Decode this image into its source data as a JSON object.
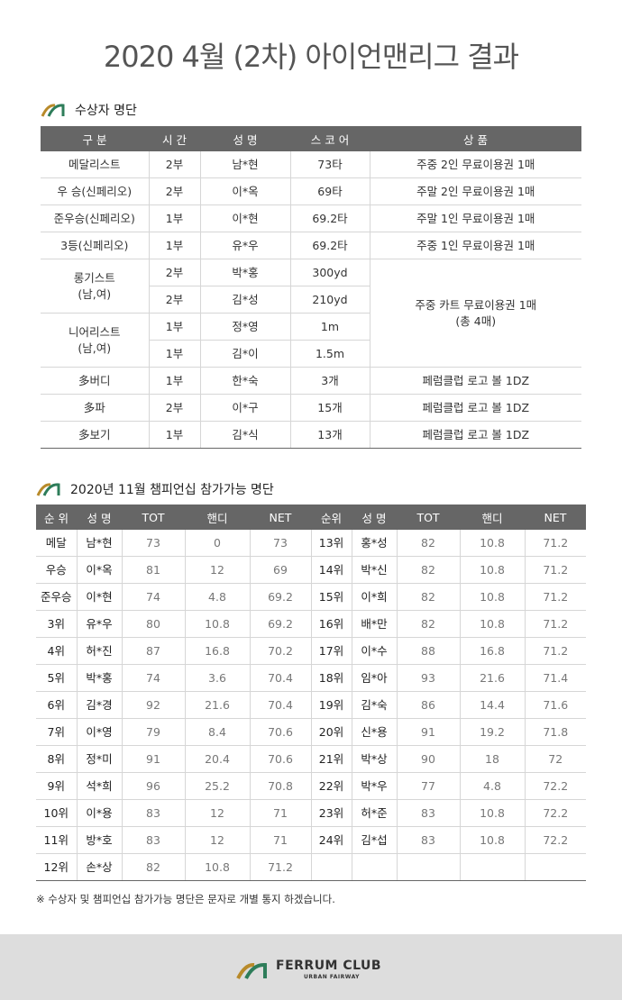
{
  "header": {
    "title": "2020 4월 (2차) 아이언맨리그 결과"
  },
  "awards": {
    "heading": "수상자 명단",
    "headers": [
      "구 분",
      "시 간",
      "성 명",
      "스 코 어",
      "상 품"
    ],
    "rows": [
      [
        "메달리스트",
        "2부",
        "남*현",
        "73타",
        "주중 2인 무료이용권 1매"
      ],
      [
        "우 승(신페리오)",
        "2부",
        "이*옥",
        "69타",
        "주말 2인 무료이용권 1매"
      ],
      [
        "준우승(신페리오)",
        "1부",
        "이*현",
        "69.2타",
        "주말 1인 무료이용권 1매"
      ],
      [
        "3등(신페리오)",
        "1부",
        "유*우",
        "69.2타",
        "주중 1인 무료이용권 1매"
      ]
    ],
    "special": {
      "prize": "주중 카트 무료이용권 1매\n(총 4매)",
      "groups": [
        {
          "category": "롱기스트\n(남,여)",
          "rows": [
            [
              "2부",
              "박*홍",
              "300yd"
            ],
            [
              "2부",
              "김*성",
              "210yd"
            ]
          ]
        },
        {
          "category": "니어리스트\n(남,여)",
          "rows": [
            [
              "1부",
              "정*영",
              "1m"
            ],
            [
              "1부",
              "김*이",
              "1.5m"
            ]
          ]
        }
      ]
    },
    "rows_after": [
      [
        "多버디",
        "1부",
        "한*숙",
        "3개",
        "페럼클럽 로고 볼 1DZ"
      ],
      [
        "多파",
        "2부",
        "이*구",
        "15개",
        "페럼클럽 로고 볼 1DZ"
      ],
      [
        "多보기",
        "1부",
        "김*식",
        "13개",
        "페럼클럽 로고 볼 1DZ"
      ]
    ]
  },
  "championship": {
    "heading": "2020년 11월 챔피언십 참가가능 명단",
    "headers": [
      "순 위",
      "성 명",
      "TOT",
      "핸디",
      "NET",
      "순위",
      "성 명",
      "TOT",
      "핸디",
      "NET"
    ],
    "left": [
      [
        "메달",
        "남*현",
        "73",
        "0",
        "73"
      ],
      [
        "우승",
        "이*옥",
        "81",
        "12",
        "69"
      ],
      [
        "준우승",
        "이*현",
        "74",
        "4.8",
        "69.2"
      ],
      [
        "3위",
        "유*우",
        "80",
        "10.8",
        "69.2"
      ],
      [
        "4위",
        "허*진",
        "87",
        "16.8",
        "70.2"
      ],
      [
        "5위",
        "박*홍",
        "74",
        "3.6",
        "70.4"
      ],
      [
        "6위",
        "김*경",
        "92",
        "21.6",
        "70.4"
      ],
      [
        "7위",
        "이*영",
        "79",
        "8.4",
        "70.6"
      ],
      [
        "8위",
        "정*미",
        "91",
        "20.4",
        "70.6"
      ],
      [
        "9위",
        "석*희",
        "96",
        "25.2",
        "70.8"
      ],
      [
        "10위",
        "이*용",
        "83",
        "12",
        "71"
      ],
      [
        "11위",
        "방*호",
        "83",
        "12",
        "71"
      ],
      [
        "12위",
        "손*상",
        "82",
        "10.8",
        "71.2"
      ]
    ],
    "right": [
      [
        "13위",
        "홍*성",
        "82",
        "10.8",
        "71.2"
      ],
      [
        "14위",
        "박*신",
        "82",
        "10.8",
        "71.2"
      ],
      [
        "15위",
        "이*희",
        "82",
        "10.8",
        "71.2"
      ],
      [
        "16위",
        "배*만",
        "82",
        "10.8",
        "71.2"
      ],
      [
        "17위",
        "이*수",
        "88",
        "16.8",
        "71.2"
      ],
      [
        "18위",
        "임*아",
        "93",
        "21.6",
        "71.4"
      ],
      [
        "19위",
        "김*숙",
        "86",
        "14.4",
        "71.6"
      ],
      [
        "20위",
        "신*용",
        "91",
        "19.2",
        "71.8"
      ],
      [
        "21위",
        "박*상",
        "90",
        "18",
        "72"
      ],
      [
        "22위",
        "박*우",
        "77",
        "4.8",
        "72.2"
      ],
      [
        "23위",
        "허*준",
        "83",
        "10.8",
        "72.2"
      ],
      [
        "24위",
        "김*섭",
        "83",
        "10.8",
        "72.2"
      ]
    ]
  },
  "note": "※ 수상자 및 챔피언십 참가가능 명단은 문자로 개별 통지 하겠습니다.",
  "footer": {
    "brand": "FERRUM CLUB",
    "tagline": "URBAN FAIRWAY"
  }
}
